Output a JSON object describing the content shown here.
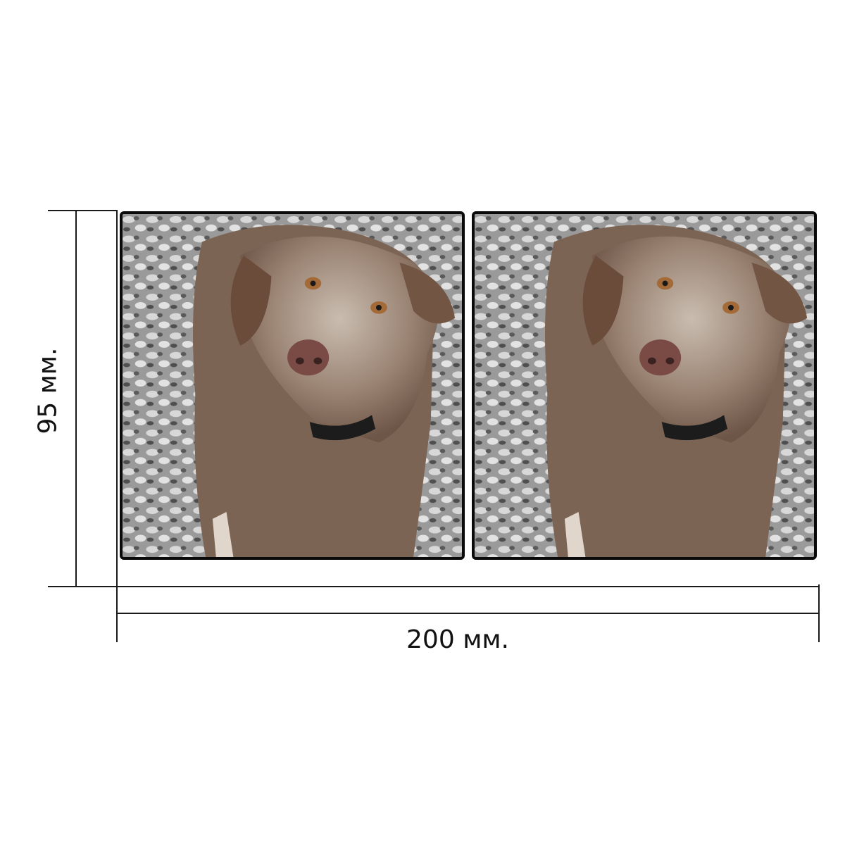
{
  "dimensions": {
    "width_label": "200 мм.",
    "height_label": "95 мм."
  },
  "panels": [
    {
      "subject": "wet-curly-dog-photo",
      "count_index": 1
    },
    {
      "subject": "wet-curly-dog-photo",
      "count_index": 2
    }
  ],
  "colors": {
    "line": "#1a1a1a",
    "frame": "#0a0a0a",
    "background_texture": "#9a9a9a",
    "dog_fur": "#8a7565",
    "dog_nose": "#7a4a45",
    "collar": "#1c1c1c"
  }
}
